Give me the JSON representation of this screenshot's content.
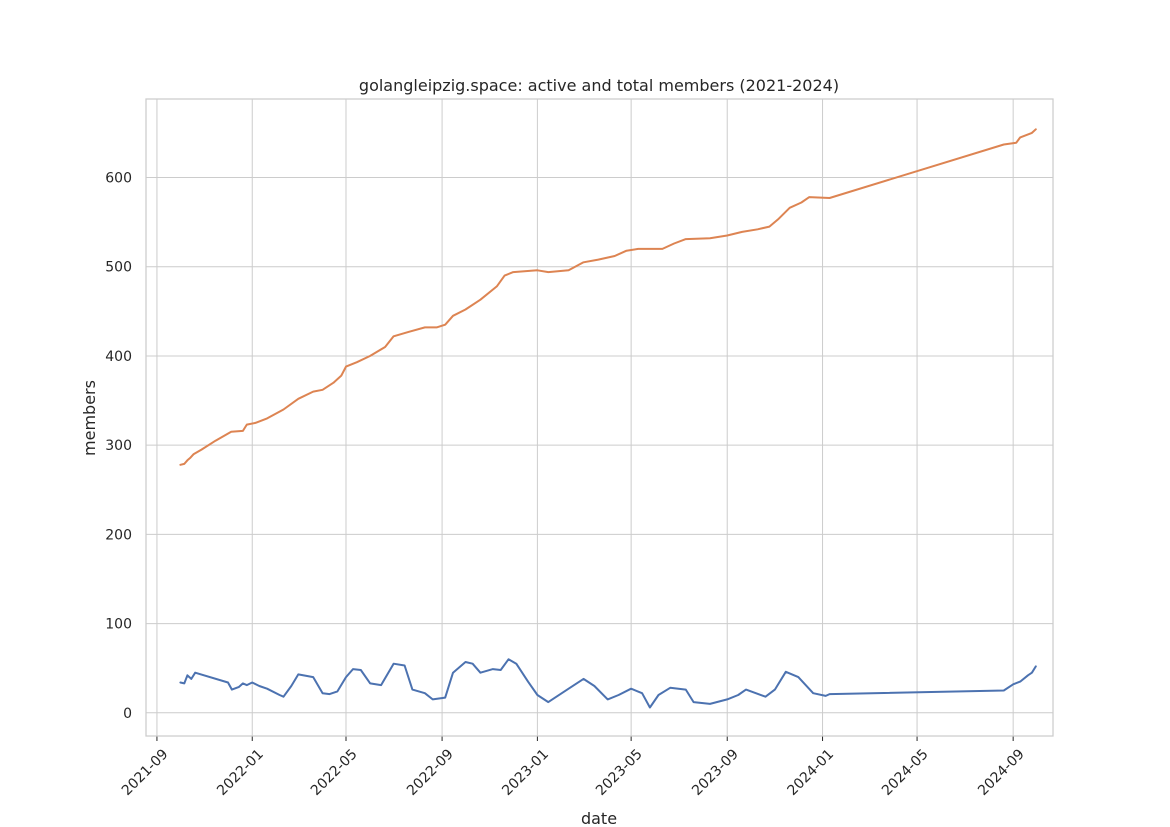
{
  "chart_data": {
    "type": "line",
    "title": "golangleipzig.space: active and total members (2021-2024)",
    "xlabel": "date",
    "ylabel": "members",
    "xlim": [
      "2021-08-18",
      "2024-10-22"
    ],
    "ylim": [
      -26,
      688
    ],
    "grid": true,
    "x_ticks": [
      "2021-09",
      "2022-01",
      "2022-05",
      "2022-09",
      "2023-01",
      "2023-05",
      "2023-09",
      "2024-01",
      "2024-05",
      "2024-09"
    ],
    "y_ticks": [
      0,
      100,
      200,
      300,
      400,
      500,
      600
    ],
    "series": [
      {
        "color": "#dd8452",
        "points": [
          [
            "2021-10-01",
            278
          ],
          [
            "2021-10-06",
            279
          ],
          [
            "2021-10-10",
            283
          ],
          [
            "2021-10-14",
            286
          ],
          [
            "2021-10-18",
            290
          ],
          [
            "2021-10-28",
            295
          ],
          [
            "2021-11-15",
            305
          ],
          [
            "2021-12-05",
            315
          ],
          [
            "2021-12-20",
            316
          ],
          [
            "2021-12-25",
            323
          ],
          [
            "2022-01-05",
            325
          ],
          [
            "2022-01-20",
            330
          ],
          [
            "2022-02-10",
            340
          ],
          [
            "2022-03-01",
            352
          ],
          [
            "2022-03-20",
            360
          ],
          [
            "2022-04-01",
            362
          ],
          [
            "2022-04-15",
            370
          ],
          [
            "2022-04-25",
            378
          ],
          [
            "2022-05-01",
            388
          ],
          [
            "2022-05-15",
            393
          ],
          [
            "2022-06-01",
            400
          ],
          [
            "2022-06-20",
            410
          ],
          [
            "2022-07-01",
            422
          ],
          [
            "2022-07-20",
            427
          ],
          [
            "2022-08-10",
            432
          ],
          [
            "2022-08-25",
            432
          ],
          [
            "2022-09-05",
            435
          ],
          [
            "2022-09-15",
            445
          ],
          [
            "2022-10-01",
            452
          ],
          [
            "2022-10-20",
            463
          ],
          [
            "2022-11-10",
            478
          ],
          [
            "2022-11-20",
            490
          ],
          [
            "2022-12-01",
            494
          ],
          [
            "2023-01-01",
            496
          ],
          [
            "2023-01-15",
            494
          ],
          [
            "2023-02-10",
            496
          ],
          [
            "2023-03-01",
            505
          ],
          [
            "2023-03-20",
            508
          ],
          [
            "2023-04-10",
            512
          ],
          [
            "2023-04-25",
            518
          ],
          [
            "2023-05-10",
            520
          ],
          [
            "2023-06-10",
            520
          ],
          [
            "2023-06-25",
            526
          ],
          [
            "2023-07-10",
            531
          ],
          [
            "2023-08-10",
            532
          ],
          [
            "2023-09-01",
            535
          ],
          [
            "2023-09-20",
            539
          ],
          [
            "2023-10-10",
            542
          ],
          [
            "2023-10-25",
            545
          ],
          [
            "2023-11-05",
            553
          ],
          [
            "2023-11-20",
            566
          ],
          [
            "2023-12-05",
            572
          ],
          [
            "2023-12-15",
            578
          ],
          [
            "2024-01-10",
            577
          ],
          [
            "2024-08-20",
            637
          ],
          [
            "2024-09-05",
            639
          ],
          [
            "2024-09-10",
            645
          ],
          [
            "2024-09-25",
            650
          ],
          [
            "2024-09-30",
            654
          ]
        ]
      },
      {
        "color": "#4c72b0",
        "points": [
          [
            "2021-10-01",
            34
          ],
          [
            "2021-10-06",
            33
          ],
          [
            "2021-10-10",
            42
          ],
          [
            "2021-10-15",
            38
          ],
          [
            "2021-10-20",
            45
          ],
          [
            "2021-12-01",
            34
          ],
          [
            "2021-12-06",
            26
          ],
          [
            "2021-12-15",
            29
          ],
          [
            "2021-12-20",
            33
          ],
          [
            "2021-12-25",
            31
          ],
          [
            "2022-01-01",
            34
          ],
          [
            "2022-01-10",
            30
          ],
          [
            "2022-01-20",
            27
          ],
          [
            "2022-02-05",
            20
          ],
          [
            "2022-02-10",
            18
          ],
          [
            "2022-02-20",
            30
          ],
          [
            "2022-03-01",
            43
          ],
          [
            "2022-03-20",
            40
          ],
          [
            "2022-04-01",
            22
          ],
          [
            "2022-04-10",
            21
          ],
          [
            "2022-04-20",
            24
          ],
          [
            "2022-05-01",
            40
          ],
          [
            "2022-05-10",
            49
          ],
          [
            "2022-05-20",
            48
          ],
          [
            "2022-06-01",
            33
          ],
          [
            "2022-06-15",
            31
          ],
          [
            "2022-07-01",
            55
          ],
          [
            "2022-07-15",
            53
          ],
          [
            "2022-07-25",
            26
          ],
          [
            "2022-08-10",
            22
          ],
          [
            "2022-08-20",
            15
          ],
          [
            "2022-09-05",
            17
          ],
          [
            "2022-09-15",
            45
          ],
          [
            "2022-10-01",
            57
          ],
          [
            "2022-10-10",
            55
          ],
          [
            "2022-10-20",
            45
          ],
          [
            "2022-11-05",
            49
          ],
          [
            "2022-11-15",
            48
          ],
          [
            "2022-11-25",
            60
          ],
          [
            "2022-12-05",
            55
          ],
          [
            "2022-12-20",
            35
          ],
          [
            "2023-01-01",
            20
          ],
          [
            "2023-01-15",
            12
          ],
          [
            "2023-02-10",
            27
          ],
          [
            "2023-03-01",
            38
          ],
          [
            "2023-03-15",
            30
          ],
          [
            "2023-04-01",
            15
          ],
          [
            "2023-04-15",
            20
          ],
          [
            "2023-05-01",
            27
          ],
          [
            "2023-05-15",
            22
          ],
          [
            "2023-05-25",
            6
          ],
          [
            "2023-06-05",
            20
          ],
          [
            "2023-06-20",
            28
          ],
          [
            "2023-07-10",
            26
          ],
          [
            "2023-07-20",
            12
          ],
          [
            "2023-08-10",
            10
          ],
          [
            "2023-09-01",
            15
          ],
          [
            "2023-09-15",
            20
          ],
          [
            "2023-09-25",
            26
          ],
          [
            "2023-10-20",
            18
          ],
          [
            "2023-11-01",
            26
          ],
          [
            "2023-11-15",
            46
          ],
          [
            "2023-12-01",
            40
          ],
          [
            "2023-12-20",
            22
          ],
          [
            "2024-01-05",
            19
          ],
          [
            "2024-01-10",
            21
          ],
          [
            "2024-08-20",
            25
          ],
          [
            "2024-09-01",
            32
          ],
          [
            "2024-09-10",
            35
          ],
          [
            "2024-09-20",
            42
          ],
          [
            "2024-09-25",
            45
          ],
          [
            "2024-09-30",
            52
          ]
        ]
      }
    ]
  }
}
